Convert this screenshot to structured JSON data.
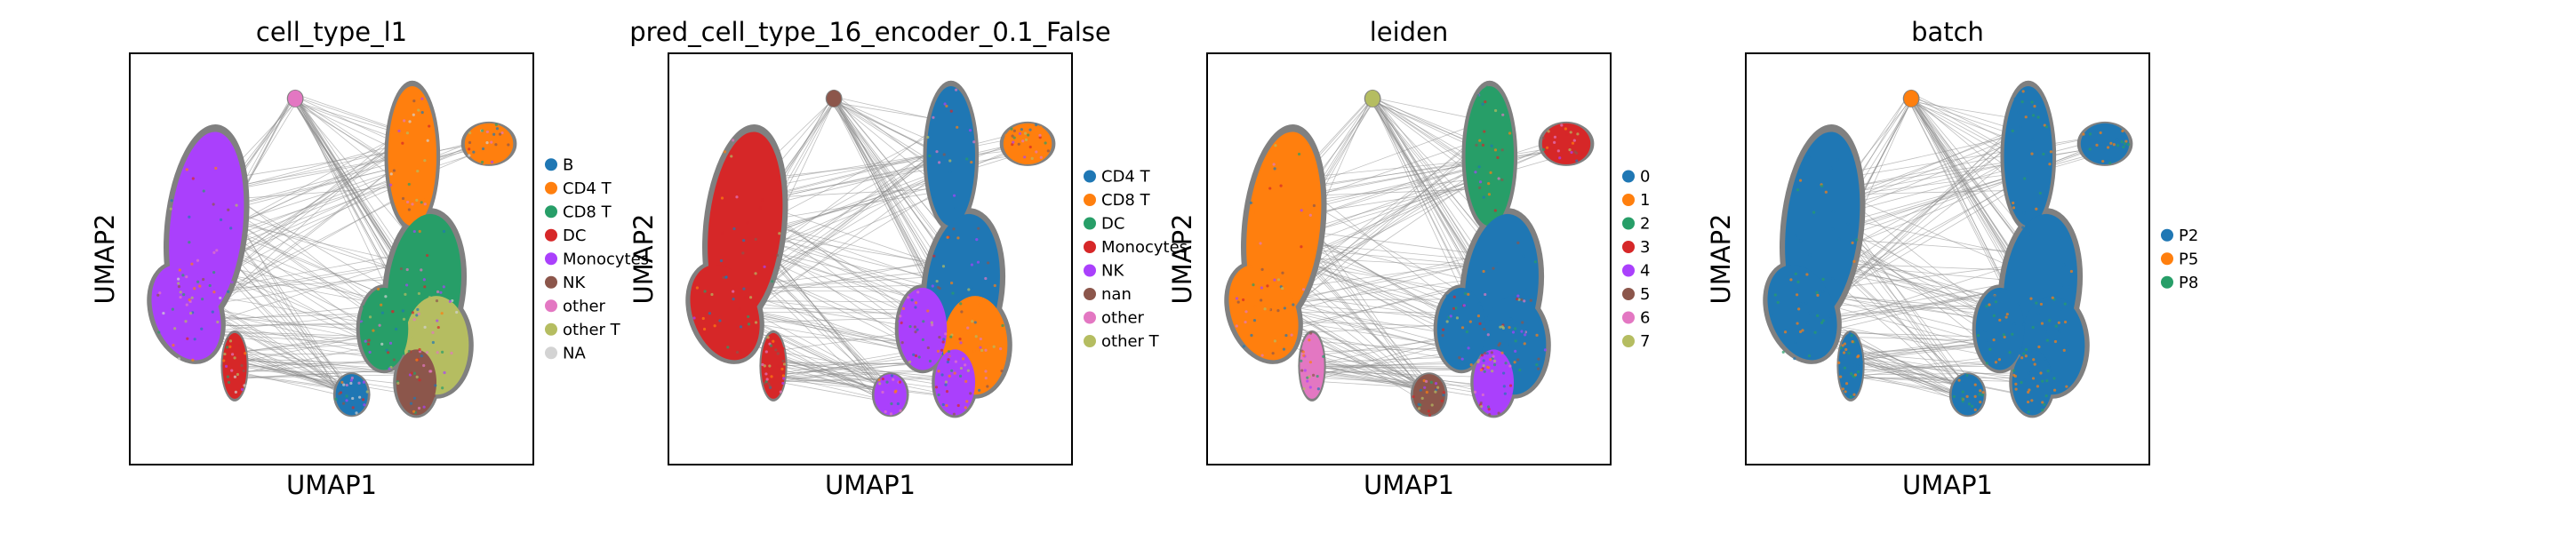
{
  "chart_data": [
    {
      "type": "scatter",
      "title": "cell_type_l1",
      "xlabel": "UMAP1",
      "ylabel": "UMAP2",
      "legend": [
        {
          "label": "B",
          "color": "#1f77b4"
        },
        {
          "label": "CD4 T",
          "color": "#ff7f0e"
        },
        {
          "label": "CD8 T",
          "color": "#279e68"
        },
        {
          "label": "DC",
          "color": "#d62728"
        },
        {
          "label": "Monocytes",
          "color": "#aa40fc"
        },
        {
          "label": "NK",
          "color": "#8c564b"
        },
        {
          "label": "other",
          "color": "#e377c2"
        },
        {
          "label": "other T",
          "color": "#b5bd61"
        },
        {
          "label": "NA",
          "color": "#d3d3d3"
        }
      ],
      "clusters": [
        "Monocytes",
        "Monocytes",
        "DC",
        "CD4 T",
        "CD4 T",
        "CD8 T",
        "other T",
        "CD8 T",
        "NK",
        "B",
        "other"
      ]
    },
    {
      "type": "scatter",
      "title": "pred_cell_type_16_encoder_0.1_False",
      "xlabel": "UMAP1",
      "ylabel": "UMAP2",
      "legend": [
        {
          "label": "CD4 T",
          "color": "#1f77b4"
        },
        {
          "label": "CD8 T",
          "color": "#ff7f0e"
        },
        {
          "label": "DC",
          "color": "#279e68"
        },
        {
          "label": "Monocytes",
          "color": "#d62728"
        },
        {
          "label": "NK",
          "color": "#aa40fc"
        },
        {
          "label": "nan",
          "color": "#8c564b"
        },
        {
          "label": "other",
          "color": "#e377c2"
        },
        {
          "label": "other T",
          "color": "#b5bd61"
        }
      ],
      "clusters": [
        "Monocytes",
        "Monocytes",
        "Monocytes",
        "CD4 T",
        "CD8 T",
        "CD4 T",
        "CD8 T",
        "NK",
        "NK",
        "NK",
        "nan"
      ]
    },
    {
      "type": "scatter",
      "title": "leiden",
      "xlabel": "UMAP1",
      "ylabel": "UMAP2",
      "legend": [
        {
          "label": "0",
          "color": "#1f77b4"
        },
        {
          "label": "1",
          "color": "#ff7f0e"
        },
        {
          "label": "2",
          "color": "#279e68"
        },
        {
          "label": "3",
          "color": "#d62728"
        },
        {
          "label": "4",
          "color": "#aa40fc"
        },
        {
          "label": "5",
          "color": "#8c564b"
        },
        {
          "label": "6",
          "color": "#e377c2"
        },
        {
          "label": "7",
          "color": "#b5bd61"
        }
      ],
      "clusters": [
        "1",
        "1",
        "6",
        "2",
        "3",
        "0",
        "0",
        "0",
        "4",
        "5",
        "7"
      ]
    },
    {
      "type": "scatter",
      "title": "batch",
      "xlabel": "UMAP1",
      "ylabel": "UMAP2",
      "legend": [
        {
          "label": "P2",
          "color": "#1f77b4"
        },
        {
          "label": "P5",
          "color": "#ff7f0e"
        },
        {
          "label": "P8",
          "color": "#279e68"
        }
      ],
      "clusters": [
        "P2",
        "P2",
        "P2",
        "P2",
        "P2",
        "P2",
        "P2",
        "P2",
        "P2",
        "P2",
        "P5"
      ]
    }
  ]
}
